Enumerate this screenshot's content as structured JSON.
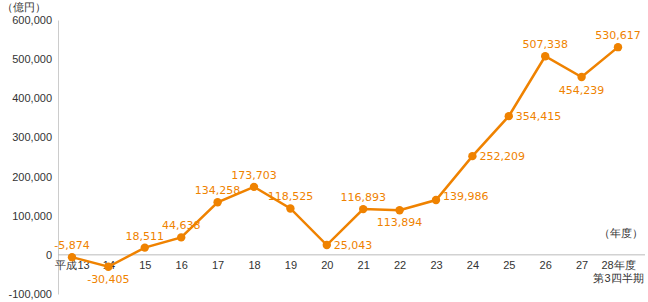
{
  "chart_data": {
    "type": "line",
    "y_label": "（億円）",
    "x_label": "（年度）",
    "categories": [
      "平成13",
      "14",
      "15",
      "16",
      "17",
      "18",
      "19",
      "20",
      "21",
      "22",
      "23",
      "24",
      "25",
      "26",
      "27",
      "28年度\n第3四半期"
    ],
    "values": [
      -5874,
      -30405,
      18511,
      44638,
      134258,
      173703,
      118525,
      25043,
      116893,
      113894,
      139986,
      252209,
      354415,
      507338,
      454239,
      530617
    ],
    "value_labels": [
      "-5,874",
      "-30,405",
      "18,511",
      "44,638",
      "134,258",
      "173,703",
      "118,525",
      "25,043",
      "116,893",
      "113,894",
      "139,986",
      "252,209",
      "354,415",
      "507,338",
      "454,239",
      "530,617"
    ],
    "color": "#ef8200",
    "marker": "circle",
    "line_style": "solid",
    "data_labels": true,
    "grid": false,
    "ylim": [
      -100000,
      600000
    ],
    "yticks": [
      {
        "value": -100000,
        "label": "-100,000"
      },
      0,
      {
        "value": 100000,
        "label": "100,000"
      },
      {
        "value": 200000,
        "label": "200,000"
      },
      {
        "value": 300000,
        "label": "300,000"
      },
      {
        "value": 400000,
        "label": "400,000"
      },
      {
        "value": 500000,
        "label": "500,000"
      },
      {
        "value": 600000,
        "label": "600,000"
      }
    ]
  }
}
